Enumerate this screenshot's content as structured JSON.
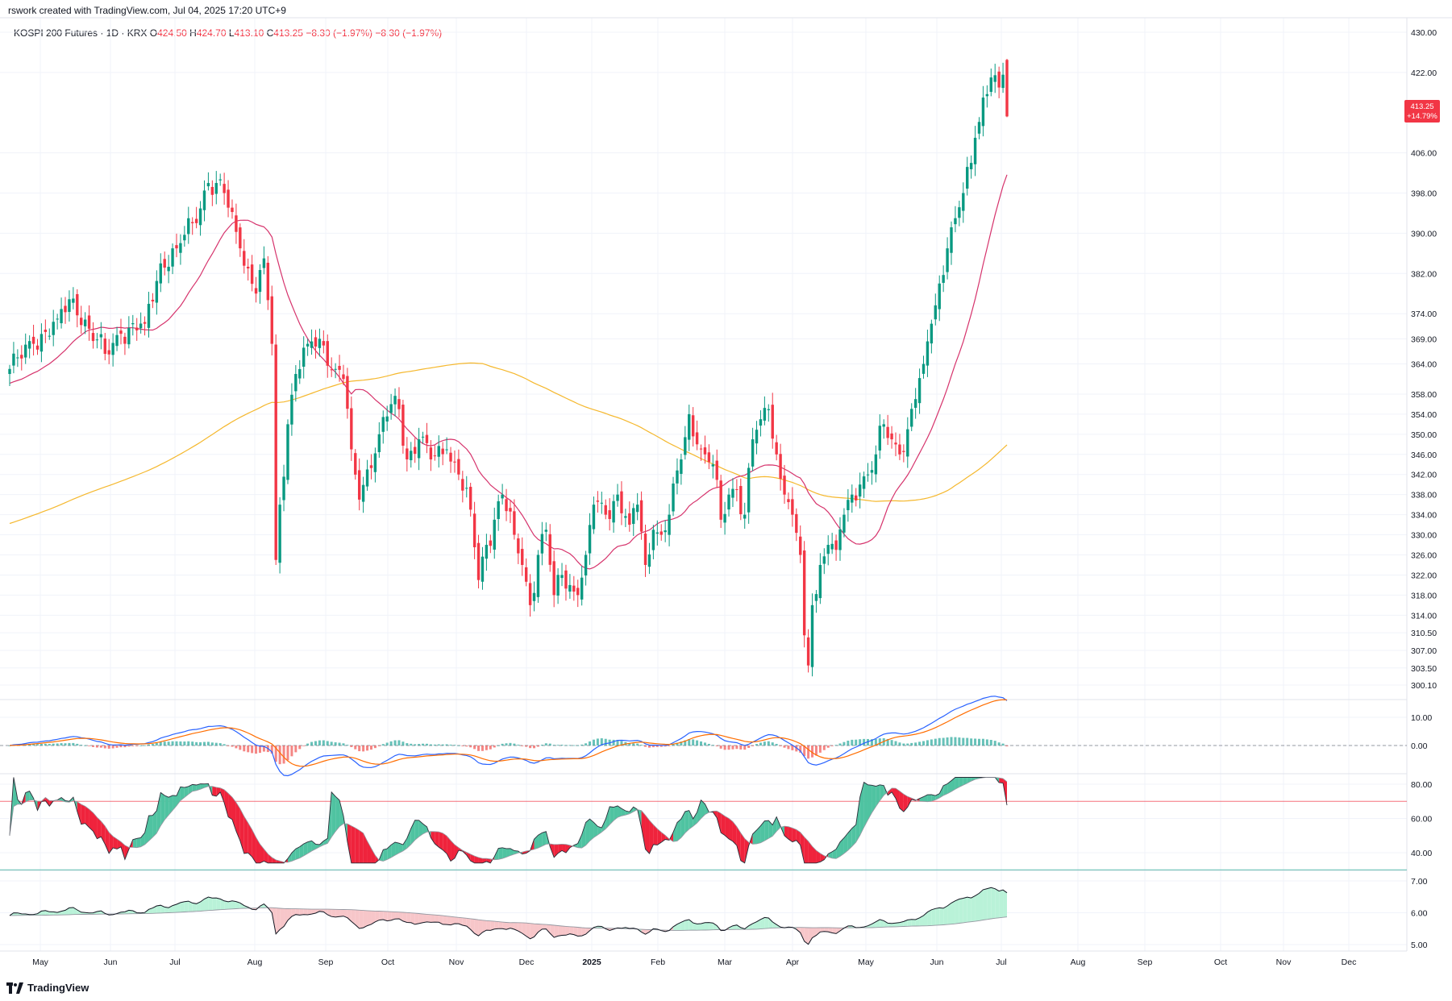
{
  "attribution": "rswork created with TradingView.com, Jul 04, 2025 17:20 UTC+9",
  "legend": {
    "symbol": "KOSPI 200 Futures · 1D · KRX",
    "o_label": "O",
    "o_value": "424.50",
    "h_label": "H",
    "h_value": "424.70",
    "l_label": "L",
    "l_value": "413.10",
    "c_label": "C",
    "c_value": "413.25",
    "change": "−8.30 (−1.97%)",
    "change2": "−8.30 (−1.97%)"
  },
  "price_badge": {
    "price": "413.25",
    "pct": "+14.79%",
    "color": "#f23645"
  },
  "branding": {
    "logo_text": "TradingView"
  },
  "colors": {
    "up": "#089981",
    "down": "#f23645",
    "ma_short": "#d6336c",
    "ma_long": "#f5b82e",
    "macd": "#2962ff",
    "signal": "#ff6d00",
    "rsi_fill_up": "#4fc3a1",
    "rsi_fill_down": "#ef233c",
    "rs_fill_up": "#b9f2d8",
    "rs_fill_down": "#f7c6c9"
  },
  "chart_data": [
    {
      "type": "candlestick",
      "panel": "price",
      "title": "KOSPI 200 Futures · 1D · KRX",
      "y_ticks": [
        "430.00",
        "422.00",
        "406.00",
        "398.00",
        "390.00",
        "382.00",
        "374.00",
        "369.00",
        "364.00",
        "358.00",
        "354.00",
        "350.00",
        "346.00",
        "342.00",
        "338.00",
        "334.00",
        "330.00",
        "326.00",
        "322.00",
        "318.00",
        "314.00",
        "310.50",
        "307.00",
        "303.50",
        "300.10"
      ],
      "ylim": [
        298,
        432
      ],
      "x_ticks": [
        "May",
        "Jun",
        "Jul",
        "Aug",
        "Sep",
        "Oct",
        "Nov",
        "Dec",
        "2025",
        "Feb",
        "Mar",
        "Apr",
        "May",
        "Jun",
        "Jul",
        "Aug",
        "Sep",
        "Oct",
        "Nov",
        "Dec"
      ],
      "anchors": [
        {
          "i": 0,
          "c": 363
        },
        {
          "i": 6,
          "c": 368
        },
        {
          "i": 12,
          "c": 373
        },
        {
          "i": 16,
          "c": 377
        },
        {
          "i": 20,
          "c": 371
        },
        {
          "i": 24,
          "c": 366
        },
        {
          "i": 28,
          "c": 370
        },
        {
          "i": 34,
          "c": 372
        },
        {
          "i": 38,
          "c": 384
        },
        {
          "i": 42,
          "c": 387
        },
        {
          "i": 46,
          "c": 392
        },
        {
          "i": 50,
          "c": 400
        },
        {
          "i": 54,
          "c": 398
        },
        {
          "i": 58,
          "c": 387
        },
        {
          "i": 60,
          "c": 383
        },
        {
          "i": 62,
          "c": 378
        },
        {
          "i": 64,
          "c": 385
        },
        {
          "i": 66,
          "c": 368
        },
        {
          "i": 67,
          "c": 325
        },
        {
          "i": 68,
          "c": 336
        },
        {
          "i": 70,
          "c": 352
        },
        {
          "i": 72,
          "c": 362
        },
        {
          "i": 75,
          "c": 368
        },
        {
          "i": 78,
          "c": 369
        },
        {
          "i": 82,
          "c": 363
        },
        {
          "i": 84,
          "c": 361
        },
        {
          "i": 86,
          "c": 347
        },
        {
          "i": 88,
          "c": 337
        },
        {
          "i": 90,
          "c": 343
        },
        {
          "i": 93,
          "c": 350
        },
        {
          "i": 96,
          "c": 356
        },
        {
          "i": 98,
          "c": 355
        },
        {
          "i": 100,
          "c": 345
        },
        {
          "i": 103,
          "c": 349
        },
        {
          "i": 106,
          "c": 345
        },
        {
          "i": 110,
          "c": 347
        },
        {
          "i": 113,
          "c": 342
        },
        {
          "i": 116,
          "c": 335
        },
        {
          "i": 118,
          "c": 321
        },
        {
          "i": 120,
          "c": 328
        },
        {
          "i": 122,
          "c": 333
        },
        {
          "i": 124,
          "c": 338
        },
        {
          "i": 127,
          "c": 330
        },
        {
          "i": 129,
          "c": 324
        },
        {
          "i": 131,
          "c": 316
        },
        {
          "i": 133,
          "c": 326
        },
        {
          "i": 135,
          "c": 331
        },
        {
          "i": 137,
          "c": 318
        },
        {
          "i": 139,
          "c": 322
        },
        {
          "i": 141,
          "c": 320
        },
        {
          "i": 143,
          "c": 318
        },
        {
          "i": 145,
          "c": 326
        },
        {
          "i": 147,
          "c": 336
        },
        {
          "i": 150,
          "c": 334
        },
        {
          "i": 153,
          "c": 338
        },
        {
          "i": 156,
          "c": 332
        },
        {
          "i": 158,
          "c": 336
        },
        {
          "i": 160,
          "c": 324
        },
        {
          "i": 162,
          "c": 331
        },
        {
          "i": 164,
          "c": 330
        },
        {
          "i": 166,
          "c": 334
        },
        {
          "i": 169,
          "c": 345
        },
        {
          "i": 171,
          "c": 354
        },
        {
          "i": 173,
          "c": 348
        },
        {
          "i": 175,
          "c": 346
        },
        {
          "i": 177,
          "c": 344
        },
        {
          "i": 179,
          "c": 333
        },
        {
          "i": 181,
          "c": 338
        },
        {
          "i": 183,
          "c": 339
        },
        {
          "i": 185,
          "c": 334
        },
        {
          "i": 187,
          "c": 349
        },
        {
          "i": 189,
          "c": 353
        },
        {
          "i": 191,
          "c": 355
        },
        {
          "i": 193,
          "c": 346
        },
        {
          "i": 195,
          "c": 338
        },
        {
          "i": 197,
          "c": 334
        },
        {
          "i": 199,
          "c": 326
        },
        {
          "i": 200,
          "c": 310
        },
        {
          "i": 201,
          "c": 304
        },
        {
          "i": 202,
          "c": 316
        },
        {
          "i": 204,
          "c": 324
        },
        {
          "i": 206,
          "c": 328
        },
        {
          "i": 208,
          "c": 327
        },
        {
          "i": 210,
          "c": 334
        },
        {
          "i": 212,
          "c": 338
        },
        {
          "i": 214,
          "c": 340
        },
        {
          "i": 216,
          "c": 342
        },
        {
          "i": 218,
          "c": 346
        },
        {
          "i": 220,
          "c": 352
        },
        {
          "i": 222,
          "c": 349
        },
        {
          "i": 224,
          "c": 346
        },
        {
          "i": 226,
          "c": 351
        },
        {
          "i": 228,
          "c": 357
        },
        {
          "i": 230,
          "c": 364
        },
        {
          "i": 232,
          "c": 372
        },
        {
          "i": 234,
          "c": 380
        },
        {
          "i": 236,
          "c": 387
        },
        {
          "i": 238,
          "c": 393
        },
        {
          "i": 240,
          "c": 398
        },
        {
          "i": 242,
          "c": 404
        },
        {
          "i": 243,
          "c": 409
        },
        {
          "i": 245,
          "c": 417
        },
        {
          "i": 247,
          "c": 421
        },
        {
          "i": 249,
          "c": 419
        },
        {
          "i": 250,
          "c": 421.55
        },
        {
          "i": 251,
          "c": 413.25
        }
      ],
      "series": [
        {
          "name": "",
          "kind": "ma_short"
        },
        {
          "name": "",
          "kind": "ma_long"
        }
      ]
    },
    {
      "type": "line",
      "panel": "macd",
      "y_ticks": [
        "10.00",
        "0.00"
      ],
      "ylim": [
        -6,
        15
      ]
    },
    {
      "type": "area",
      "panel": "rsi",
      "y_ticks": [
        "80.00",
        "60.00",
        "40.00"
      ],
      "ylim": [
        29,
        86
      ],
      "levels": [
        70,
        30
      ]
    },
    {
      "type": "area",
      "panel": "ratio",
      "y_ticks": [
        "7.00",
        "6.00",
        "5.00"
      ],
      "ylim": [
        4.6,
        7.1
      ]
    }
  ]
}
